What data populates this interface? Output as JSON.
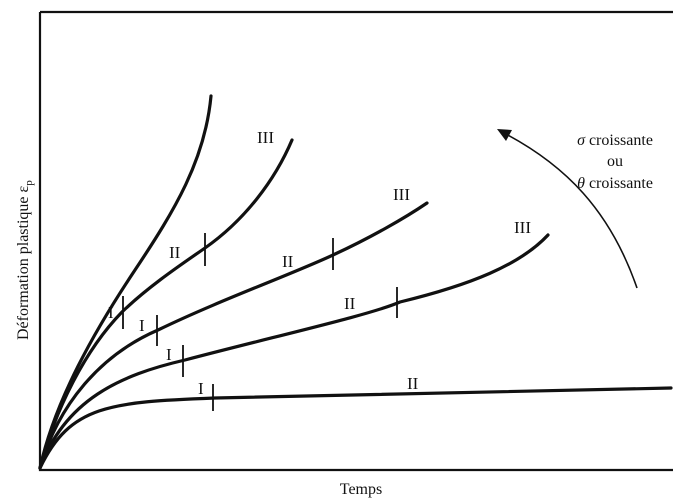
{
  "figure": {
    "x_axis_label": "Temps",
    "y_axis_label": "Déformation plastique ε",
    "y_axis_subscript": "p",
    "annotation": {
      "line1_symbol": "σ",
      "line1_text": " croissante",
      "line2": "ou",
      "line3_symbol": "θ",
      "line3_text": " croissante"
    },
    "colors": {
      "ink": "#111111",
      "background": "#ffffff"
    },
    "stage_labels": {
      "primary": "I",
      "secondary": "II",
      "tertiary": "III"
    }
  }
}
